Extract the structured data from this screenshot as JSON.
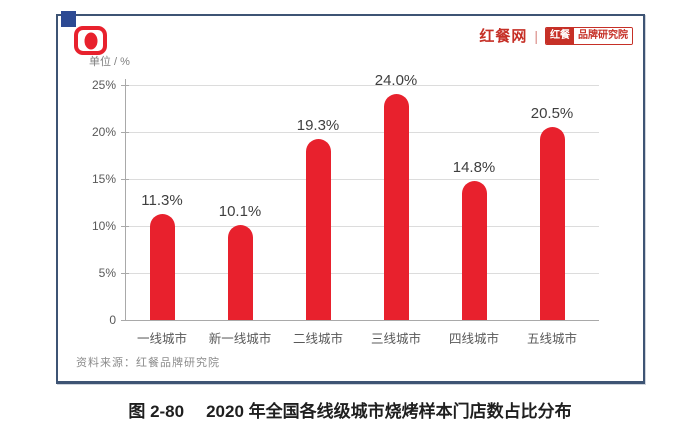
{
  "brand": {
    "site_name": "红餐网",
    "divider": "|",
    "badge_left": "红餐",
    "badge_right": "品牌研究院"
  },
  "chart_data": {
    "type": "bar",
    "unit_label": "单位 / %",
    "categories": [
      "一线城市",
      "新一线城市",
      "二线城市",
      "三线城市",
      "四线城市",
      "五线城市"
    ],
    "values": [
      11.3,
      10.1,
      19.3,
      24.0,
      14.8,
      20.5
    ],
    "value_labels": [
      "11.3%",
      "10.1%",
      "19.3%",
      "24.0%",
      "14.8%",
      "20.5%"
    ],
    "ylim": [
      0,
      25
    ],
    "yticks": [
      0,
      5,
      10,
      15,
      20,
      25
    ],
    "ytick_labels": [
      "0",
      "5%",
      "10%",
      "15%",
      "20%",
      "25%"
    ],
    "grid": true,
    "legend": "none",
    "bar_color": "#e8212d"
  },
  "source": "资料来源：红餐品牌研究院",
  "caption": {
    "label": "图 2-80",
    "text": "2020 年全国各线级城市烧烤样本门店数占比分布"
  }
}
